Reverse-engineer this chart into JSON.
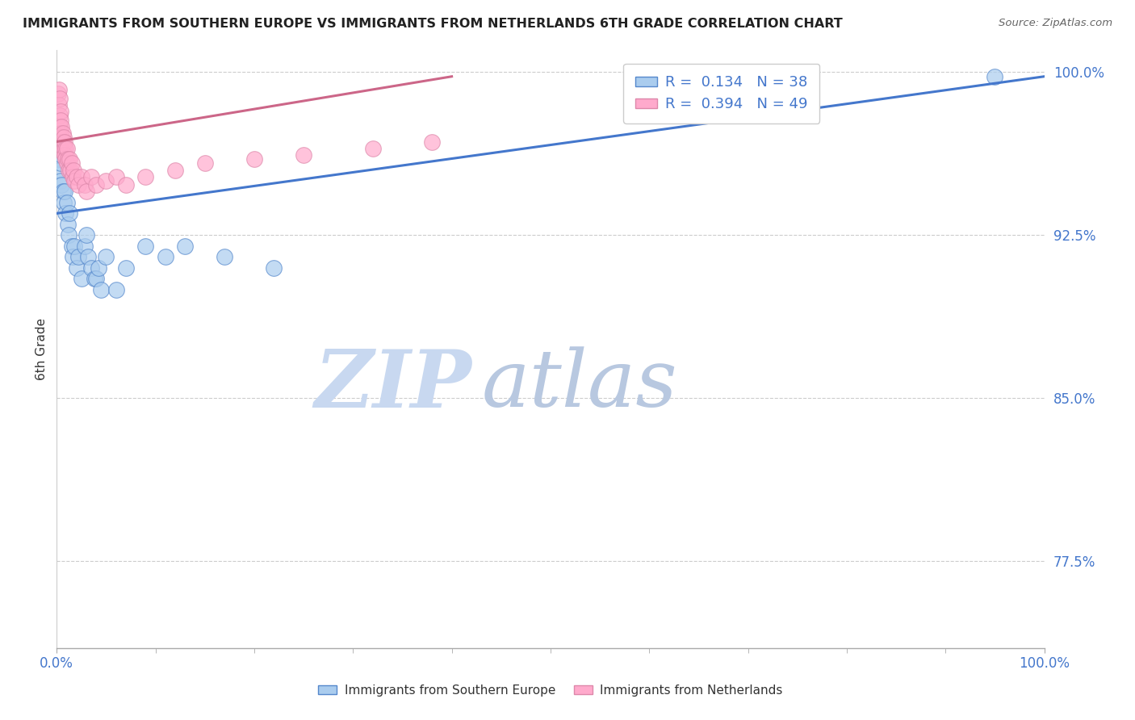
{
  "title": "IMMIGRANTS FROM SOUTHERN EUROPE VS IMMIGRANTS FROM NETHERLANDS 6TH GRADE CORRELATION CHART",
  "source": "Source: ZipAtlas.com",
  "ylabel": "6th Grade",
  "xlim": [
    0.0,
    1.0
  ],
  "ylim": [
    0.735,
    1.01
  ],
  "yticks": [
    0.775,
    0.85,
    0.925,
    1.0
  ],
  "ytick_labels": [
    "77.5%",
    "85.0%",
    "92.5%",
    "100.0%"
  ],
  "blue_scatter_x": [
    0.002,
    0.003,
    0.003,
    0.004,
    0.004,
    0.005,
    0.005,
    0.006,
    0.007,
    0.008,
    0.009,
    0.01,
    0.011,
    0.012,
    0.013,
    0.015,
    0.016,
    0.018,
    0.02,
    0.022,
    0.025,
    0.028,
    0.03,
    0.032,
    0.035,
    0.038,
    0.04,
    0.042,
    0.045,
    0.05,
    0.06,
    0.07,
    0.09,
    0.11,
    0.13,
    0.17,
    0.22,
    0.95
  ],
  "blue_scatter_y": [
    0.96,
    0.965,
    0.955,
    0.95,
    0.958,
    0.948,
    0.962,
    0.945,
    0.94,
    0.945,
    0.935,
    0.94,
    0.93,
    0.925,
    0.935,
    0.92,
    0.915,
    0.92,
    0.91,
    0.915,
    0.905,
    0.92,
    0.925,
    0.915,
    0.91,
    0.905,
    0.905,
    0.91,
    0.9,
    0.915,
    0.9,
    0.91,
    0.92,
    0.915,
    0.92,
    0.915,
    0.91,
    0.998
  ],
  "pink_scatter_x": [
    0.001,
    0.002,
    0.002,
    0.003,
    0.003,
    0.003,
    0.004,
    0.004,
    0.004,
    0.005,
    0.005,
    0.005,
    0.005,
    0.006,
    0.006,
    0.006,
    0.007,
    0.007,
    0.008,
    0.008,
    0.009,
    0.009,
    0.01,
    0.01,
    0.011,
    0.012,
    0.013,
    0.014,
    0.015,
    0.016,
    0.017,
    0.018,
    0.02,
    0.022,
    0.025,
    0.028,
    0.03,
    0.035,
    0.04,
    0.05,
    0.06,
    0.07,
    0.09,
    0.12,
    0.15,
    0.2,
    0.25,
    0.32,
    0.38
  ],
  "pink_scatter_y": [
    0.99,
    0.992,
    0.985,
    0.988,
    0.98,
    0.975,
    0.982,
    0.978,
    0.972,
    0.975,
    0.97,
    0.968,
    0.965,
    0.972,
    0.968,
    0.963,
    0.97,
    0.965,
    0.968,
    0.962,
    0.965,
    0.96,
    0.965,
    0.958,
    0.96,
    0.955,
    0.96,
    0.955,
    0.958,
    0.952,
    0.955,
    0.95,
    0.952,
    0.948,
    0.952,
    0.948,
    0.945,
    0.952,
    0.948,
    0.95,
    0.952,
    0.948,
    0.952,
    0.955,
    0.958,
    0.96,
    0.962,
    0.965,
    0.968
  ],
  "blue_line_x": [
    0.0,
    1.0
  ],
  "blue_line_y": [
    0.935,
    0.998
  ],
  "pink_line_x": [
    0.0,
    0.4
  ],
  "pink_line_y": [
    0.968,
    0.998
  ],
  "blue_R": "0.134",
  "blue_N": "38",
  "pink_R": "0.394",
  "pink_N": "49",
  "blue_color": "#aaccee",
  "pink_color": "#ffaacc",
  "blue_edge_color": "#5588cc",
  "pink_edge_color": "#dd88aa",
  "blue_line_color": "#4477cc",
  "pink_line_color": "#cc6688",
  "title_color": "#222222",
  "source_color": "#666666",
  "axis_color": "#333333",
  "grid_color": "#cccccc",
  "tick_color": "#4477cc",
  "watermark_zip_color": "#c8d8f0",
  "watermark_atlas_color": "#b8c8e0"
}
